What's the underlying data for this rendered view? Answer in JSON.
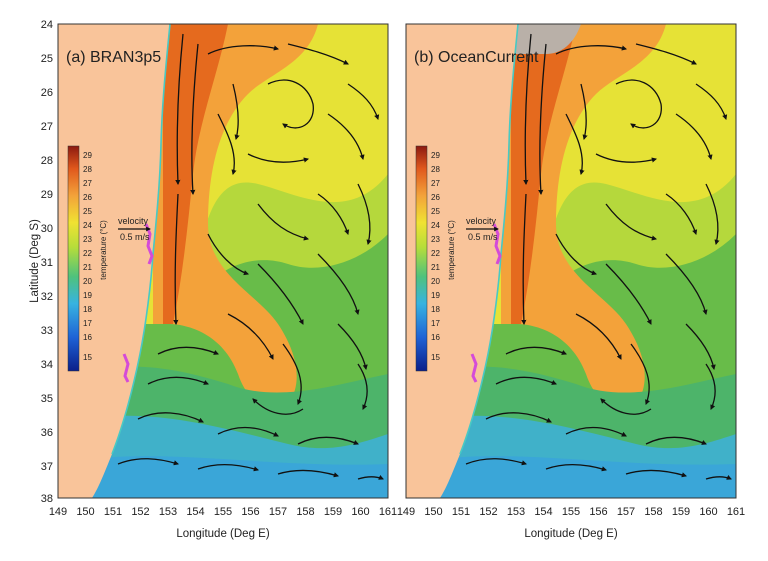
{
  "figure": {
    "x_axis_title": "Longitude (Deg E)",
    "y_axis_title": "Latitude (Deg S)"
  },
  "x_ticks_left": [
    "149",
    "150",
    "151",
    "152",
    "153",
    "154",
    "155",
    "156",
    "157",
    "158",
    "159",
    "160",
    "161"
  ],
  "x_ticks_right": [
    "149",
    "150",
    "151",
    "152",
    "153",
    "154",
    "155",
    "156",
    "157",
    "158",
    "159",
    "160",
    "161"
  ],
  "y_ticks": [
    "24",
    "25",
    "26",
    "27",
    "28",
    "29",
    "30",
    "31",
    "32",
    "33",
    "34",
    "35",
    "36",
    "37",
    "38"
  ],
  "panels": [
    {
      "title": "(a) BRAN3p5",
      "colorbar_title": "temperature (°C)",
      "colorbar_ticks": [
        "29",
        "28",
        "27",
        "26",
        "25",
        "24",
        "23",
        "22",
        "21",
        "20",
        "19",
        "18",
        "17",
        "16",
        "15"
      ],
      "velocity_label": "velocity",
      "velocity_value": "0.5 m/s"
    },
    {
      "title": "(b) OceanCurrent",
      "colorbar_title": "temperature (°C)",
      "colorbar_ticks": [
        "29",
        "28",
        "27",
        "26",
        "25",
        "24",
        "23",
        "22",
        "21",
        "20",
        "19",
        "18",
        "17",
        "16",
        "15"
      ],
      "velocity_label": "velocity",
      "velocity_value": "0.5 m/s"
    }
  ],
  "colors": {
    "land": "#f9c49a",
    "warm_core": "#e56a1e",
    "warm": "#f3a23a",
    "mid": "#e9e33a",
    "cool": "#59b548",
    "cold": "#3fb0d6",
    "arrow": "#111111"
  }
}
